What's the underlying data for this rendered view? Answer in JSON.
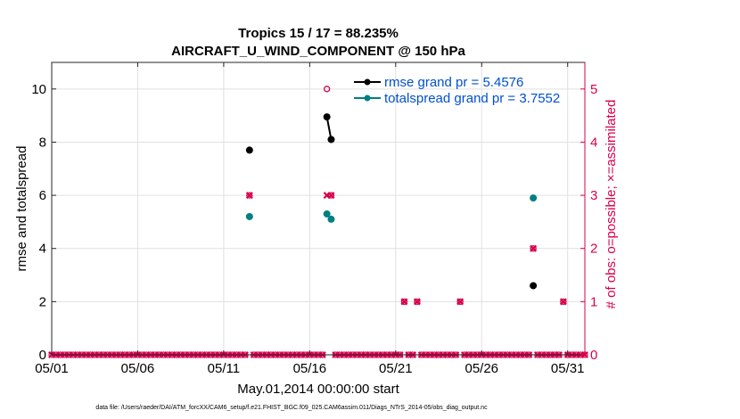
{
  "chart_data": {
    "type": "scatter",
    "title": "Tropics 15 / 17 = 88.235%",
    "subtitle": "AIRCRAFT_U_WIND_COMPONENT @ 150 hPa",
    "xlabel": "May.01,2014 00:00:00 start",
    "ylabel": "rmse and totalspread",
    "y2label": "# of obs: o=possible; ×=assimilated",
    "footnote": "data file: /Users/raeder/DAI/ATM_forcXX/CAM6_setup/f.e21.FHIST_BGC.f09_025.CAM6assim.011/Diags_NTrS_2014-05/obs_diag_output.nc",
    "xlim": [
      1,
      32
    ],
    "ylim": [
      0,
      11
    ],
    "y2lim": [
      0,
      5.5
    ],
    "x_ticks": [
      {
        "value": 1,
        "label": "05/01"
      },
      {
        "value": 6,
        "label": "05/06"
      },
      {
        "value": 11,
        "label": "05/11"
      },
      {
        "value": 16,
        "label": "05/16"
      },
      {
        "value": 21,
        "label": "05/21"
      },
      {
        "value": 26,
        "label": "05/26"
      },
      {
        "value": 31,
        "label": "05/31"
      }
    ],
    "y_ticks": [
      0,
      2,
      4,
      6,
      8,
      10
    ],
    "y2_ticks": [
      0,
      1,
      2,
      3,
      4,
      5
    ],
    "grid": true,
    "legend_position": "top-right",
    "colors": {
      "rmse": "#000000",
      "spread": "#008080",
      "obs": "#d8004c",
      "legend_text": "#0050d0"
    },
    "series": [
      {
        "name": "rmse grand pr = 5.4576",
        "axis": "left",
        "points": [
          [
            12.5,
            7.7
          ],
          [
            17.0,
            8.95
          ],
          [
            17.25,
            8.1
          ],
          [
            29.0,
            2.6
          ]
        ]
      },
      {
        "name": "totalspread grand pr = 3.7552",
        "axis": "left",
        "points": [
          [
            12.5,
            5.2
          ],
          [
            17.0,
            5.3
          ],
          [
            17.25,
            5.1
          ],
          [
            29.0,
            5.9
          ]
        ]
      }
    ],
    "obs_possible": {
      "axis": "right",
      "nonzero": [
        [
          12.5,
          3
        ],
        [
          17.0,
          5
        ],
        [
          17.25,
          3
        ],
        [
          21.5,
          1
        ],
        [
          22.25,
          1
        ],
        [
          24.75,
          1
        ],
        [
          29.0,
          2
        ],
        [
          30.75,
          1
        ]
      ]
    },
    "obs_assimilated": {
      "axis": "right",
      "nonzero": [
        [
          12.5,
          3
        ],
        [
          17.0,
          3
        ],
        [
          17.25,
          3
        ],
        [
          21.5,
          1
        ],
        [
          22.25,
          1
        ],
        [
          24.75,
          1
        ],
        [
          29.0,
          2
        ],
        [
          30.75,
          1
        ]
      ]
    },
    "obs_time_step_days": 0.25
  }
}
